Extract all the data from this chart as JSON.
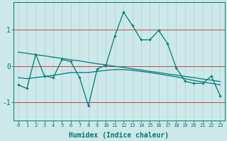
{
  "xlabel": "Humidex (Indice chaleur)",
  "bg_color": "#cce8e8",
  "grid_color": "#aad4d4",
  "line_color": "#007878",
  "red_line_color": "#cc4444",
  "x_data": [
    0,
    1,
    2,
    3,
    4,
    5,
    6,
    7,
    8,
    9,
    10,
    11,
    12,
    13,
    14,
    15,
    16,
    17,
    18,
    19,
    20,
    21,
    22,
    23
  ],
  "y_main": [
    -0.52,
    -0.62,
    0.32,
    -0.28,
    -0.32,
    0.18,
    0.12,
    -0.32,
    -1.1,
    -0.08,
    0.02,
    0.82,
    1.48,
    1.12,
    0.72,
    0.72,
    0.98,
    0.62,
    -0.05,
    -0.42,
    -0.48,
    -0.48,
    -0.28,
    -0.82
  ],
  "y_trend_straight": [
    0.38,
    0.35,
    0.31,
    0.28,
    0.24,
    0.21,
    0.17,
    0.14,
    0.1,
    0.06,
    0.03,
    -0.01,
    -0.04,
    -0.08,
    -0.11,
    -0.15,
    -0.18,
    -0.22,
    -0.25,
    -0.29,
    -0.32,
    -0.36,
    -0.39,
    -0.43
  ],
  "y_trend_curve": [
    -0.32,
    -0.35,
    -0.32,
    -0.29,
    -0.26,
    -0.22,
    -0.18,
    -0.18,
    -0.18,
    -0.15,
    -0.12,
    -0.1,
    -0.1,
    -0.12,
    -0.15,
    -0.18,
    -0.22,
    -0.26,
    -0.3,
    -0.35,
    -0.4,
    -0.44,
    -0.48,
    -0.52
  ],
  "ylim": [
    -1.5,
    1.75
  ],
  "yticks": [
    -1,
    0,
    1
  ],
  "xlim": [
    -0.5,
    23.5
  ],
  "xticks": [
    0,
    1,
    2,
    3,
    4,
    5,
    6,
    7,
    8,
    9,
    10,
    11,
    12,
    13,
    14,
    15,
    16,
    17,
    18,
    19,
    20,
    21,
    22,
    23
  ],
  "red_hlines": [
    -1,
    0,
    1
  ],
  "figsize": [
    3.2,
    2.0
  ],
  "dpi": 100
}
